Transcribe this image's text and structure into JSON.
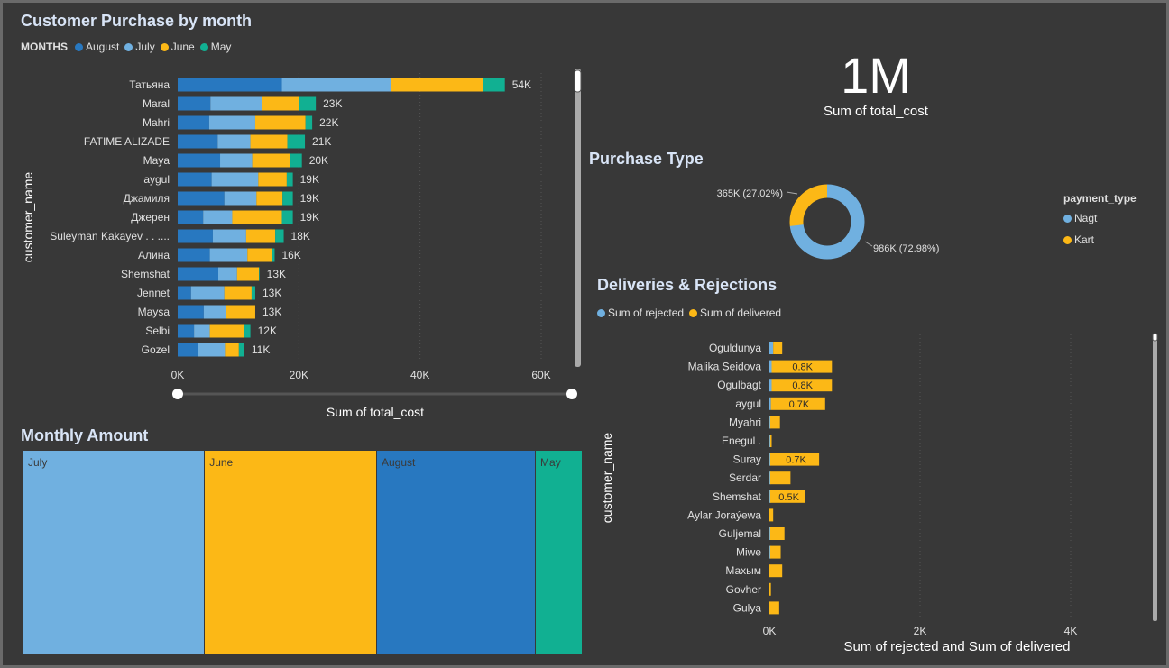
{
  "colors": {
    "august": "#2878c0",
    "july": "#70b0e0",
    "june": "#fcb816",
    "may": "#11b092"
  },
  "purchase_chart": {
    "title": "Customer Purchase by month",
    "legend_label": "MONTHS",
    "legend": [
      "August",
      "July",
      "June",
      "May"
    ],
    "xlabel": "Sum of total_cost",
    "ylabel": "customer_name",
    "ticks": [
      "0K",
      "20K",
      "40K",
      "60K"
    ]
  },
  "kpi": {
    "value": "1M",
    "label": "Sum of total_cost"
  },
  "purchase_type": {
    "title": "Purchase Type",
    "legend_title": "payment_type",
    "legend": [
      "Nagt",
      "Kart"
    ],
    "label_kart": "365K (27.02%)",
    "label_nagt": "986K (72.98%)"
  },
  "deliveries": {
    "title": "Deliveries & Rejections",
    "legend": [
      "Sum of rejected",
      "Sum of delivered"
    ],
    "xlabel": "Sum of rejected and Sum of delivered",
    "ylabel": "customer_name",
    "ticks": [
      "0K",
      "2K",
      "4K"
    ]
  },
  "monthly": {
    "title": "Monthly Amount",
    "tiles": [
      "July",
      "June",
      "August",
      "May"
    ]
  },
  "chart_data": [
    {
      "type": "bar",
      "title": "Customer Purchase by month",
      "xlabel": "Sum of total_cost",
      "ylabel": "customer_name",
      "xlim": [
        0,
        66000
      ],
      "categories": [
        "Татьяна",
        "Maral",
        "Mahri",
        "FATIME ALIZADE",
        "Maya",
        "aygul",
        "Джамиля",
        "Джерен",
        "Suleyman Kakayev . . ....",
        "Алина",
        "Shemshat",
        "Jennet",
        "Maysa",
        "Selbi",
        "Gozel"
      ],
      "totals_labels": [
        "54K",
        "23K",
        "22K",
        "21K",
        "20K",
        "19K",
        "19K",
        "19K",
        "18K",
        "16K",
        "13K",
        "13K",
        "13K",
        "12K",
        "11K"
      ],
      "series": [
        {
          "name": "August",
          "values": [
            17200,
            5400,
            5200,
            6600,
            7000,
            5600,
            7700,
            4200,
            5800,
            5300,
            6700,
            2200,
            4300,
            2700,
            3400
          ]
        },
        {
          "name": "July",
          "values": [
            18000,
            8500,
            7600,
            5400,
            5300,
            7700,
            5300,
            4800,
            5500,
            6200,
            3100,
            5500,
            3700,
            2600,
            4400
          ]
        },
        {
          "name": "June",
          "values": [
            15200,
            6100,
            8300,
            6100,
            6300,
            4700,
            4300,
            8200,
            4800,
            4100,
            3600,
            4500,
            4800,
            5600,
            2300
          ]
        },
        {
          "name": "May",
          "values": [
            3600,
            2800,
            1100,
            2900,
            1900,
            1000,
            1700,
            1800,
            1400,
            400,
            100,
            600,
            0,
            1100,
            900
          ]
        }
      ],
      "legend_position": "top-left",
      "grid": true
    },
    {
      "type": "pie",
      "title": "Purchase Type",
      "categories": [
        "Nagt",
        "Kart"
      ],
      "values": [
        986,
        365
      ],
      "percent_labels": [
        "72.98%",
        "27.02%"
      ]
    },
    {
      "type": "bar",
      "title": "Deliveries & Rejections",
      "xlabel": "Sum of rejected and Sum of delivered",
      "ylabel": "customer_name",
      "xlim": [
        0,
        4800
      ],
      "categories": [
        "Oguldunya",
        "Malika Seidova",
        "Ogulbagt",
        "aygul",
        "Myahri",
        "Enegul .",
        "Suray",
        "Serdar",
        "Shemshat",
        "Aylar Joraýewa",
        "Guljemal",
        "Miwe",
        "Махым",
        "Govher",
        "Gulya"
      ],
      "series": [
        {
          "name": "Sum of rejected",
          "values": [
            50,
            30,
            30,
            20,
            10,
            10,
            10,
            10,
            10,
            0,
            10,
            10,
            0,
            0,
            0
          ]
        },
        {
          "name": "Sum of delivered",
          "values": [
            120,
            800,
            800,
            720,
            130,
            20,
            650,
            270,
            460,
            50,
            190,
            140,
            170,
            20,
            130
          ]
        }
      ],
      "data_labels": [
        "",
        "0.8K",
        "0.8K",
        "0.7K",
        "",
        "",
        "0.7K",
        "",
        "0.5K",
        "",
        "",
        "",
        "",
        "",
        ""
      ],
      "legend_position": "top-left",
      "grid": true
    },
    {
      "type": "treemap",
      "title": "Monthly Amount",
      "categories": [
        "July",
        "June",
        "August",
        "May"
      ],
      "values": [
        368,
        349,
        322,
        95
      ]
    }
  ]
}
